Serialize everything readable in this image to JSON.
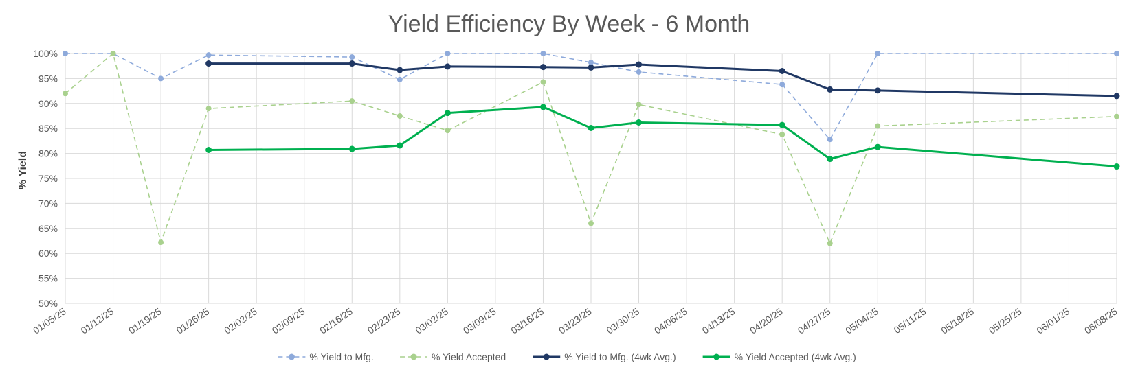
{
  "chart_data": {
    "type": "line",
    "title": "Yield Efficiency By Week - 6 Month",
    "xlabel": "",
    "ylabel": "% Yield",
    "ylim": [
      50,
      100
    ],
    "y_ticks": [
      "50%",
      "55%",
      "60%",
      "65%",
      "70%",
      "75%",
      "80%",
      "85%",
      "90%",
      "95%",
      "100%"
    ],
    "categories": [
      "01/05/25",
      "01/12/25",
      "01/19/25",
      "01/26/25",
      "02/02/25",
      "02/09/25",
      "02/16/25",
      "02/23/25",
      "03/02/25",
      "03/09/25",
      "03/16/25",
      "03/23/25",
      "03/30/25",
      "04/06/25",
      "04/13/25",
      "04/20/25",
      "04/27/25",
      "05/04/25",
      "05/11/25",
      "05/18/25",
      "05/25/25",
      "06/01/25",
      "06/08/25"
    ],
    "grid": true,
    "legend_position": "bottom",
    "series": [
      {
        "name": "% Yield to Mfg.",
        "color": "#8eaadb",
        "style": "dashed",
        "values": [
          100,
          100,
          95,
          99.7,
          null,
          null,
          99.3,
          94.8,
          100,
          null,
          100,
          98.2,
          96.3,
          null,
          null,
          93.8,
          82.8,
          100,
          null,
          null,
          null,
          null,
          100
        ]
      },
      {
        "name": "% Yield Accepted",
        "color": "#a9d18e",
        "style": "dashed",
        "values": [
          92,
          100,
          62.2,
          89,
          null,
          null,
          90.5,
          87.5,
          84.6,
          null,
          94.3,
          66,
          89.8,
          null,
          null,
          83.8,
          62,
          85.5,
          null,
          null,
          null,
          null,
          87.4
        ]
      },
      {
        "name": "% Yield to Mfg. (4wk Avg.)",
        "color": "#203864",
        "style": "solid",
        "values": [
          null,
          null,
          null,
          98,
          null,
          null,
          98,
          96.7,
          97.4,
          null,
          97.3,
          97.2,
          97.8,
          null,
          null,
          96.5,
          92.8,
          92.6,
          null,
          null,
          null,
          null,
          91.5
        ]
      },
      {
        "name": "% Yield Accepted (4wk Avg.)",
        "color": "#00b050",
        "style": "solid",
        "values": [
          null,
          null,
          null,
          80.7,
          null,
          null,
          80.9,
          81.6,
          88.1,
          null,
          89.3,
          85.1,
          86.2,
          null,
          null,
          85.7,
          78.9,
          81.3,
          null,
          null,
          null,
          null,
          77.4
        ]
      }
    ]
  }
}
